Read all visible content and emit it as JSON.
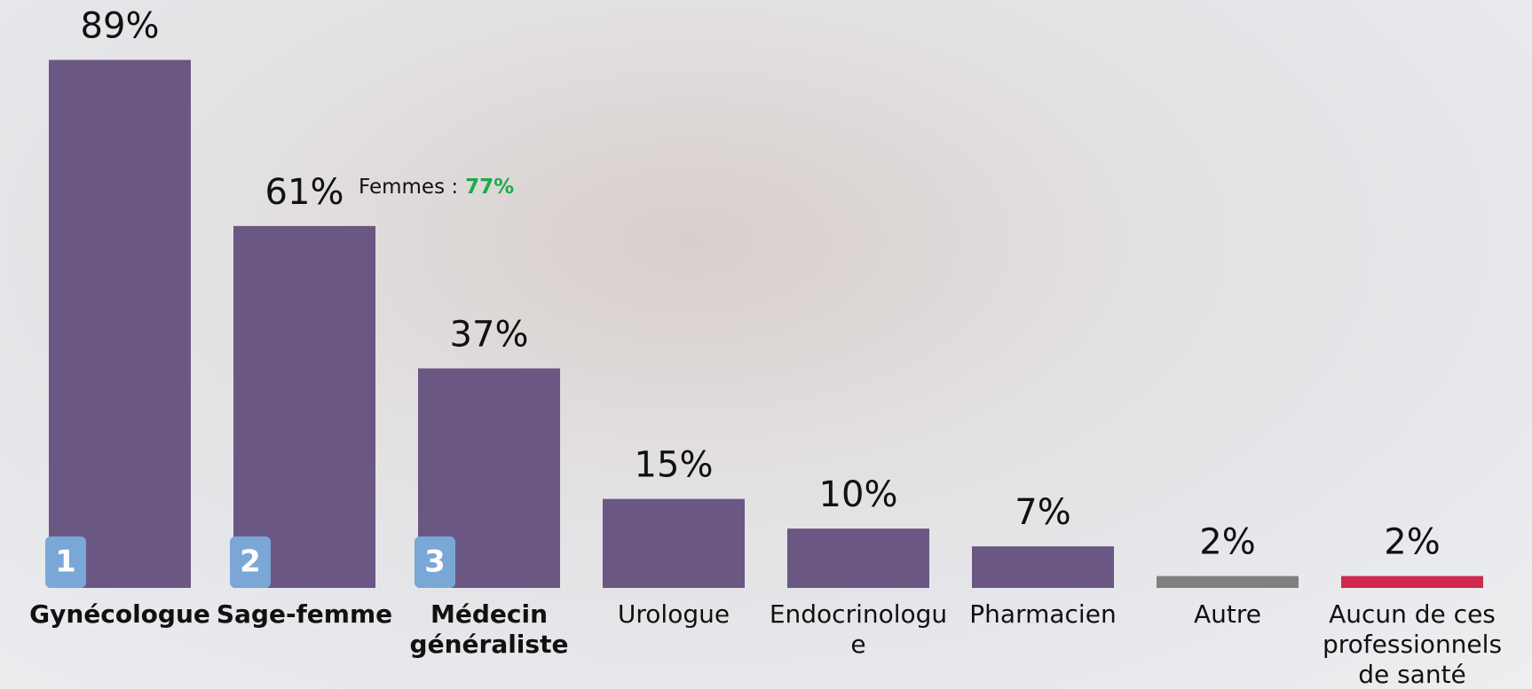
{
  "chart_data": {
    "type": "bar",
    "categories": [
      "Gynécologue",
      "Sage-femme",
      "Médecin généraliste",
      "Urologue",
      "Endocrinologue",
      "Pharmacien",
      "Autre",
      "Aucun de ces professionnels de santé"
    ],
    "values": [
      89,
      61,
      37,
      15,
      10,
      7,
      2,
      2
    ],
    "value_labels": [
      "89%",
      "61%",
      "37%",
      "15%",
      "10%",
      "7%",
      "2%",
      "2%"
    ],
    "colors": [
      "#6a5784",
      "#6a5784",
      "#6a5784",
      "#6a5784",
      "#6a5784",
      "#6a5784",
      "#808080",
      "#d0284f"
    ],
    "ranks": [
      "1",
      "2",
      "3",
      null,
      null,
      null,
      null,
      null
    ],
    "annotation": {
      "text": "Femmes :",
      "value": 77,
      "value_label": "77%",
      "color": "#1aab4a"
    }
  }
}
